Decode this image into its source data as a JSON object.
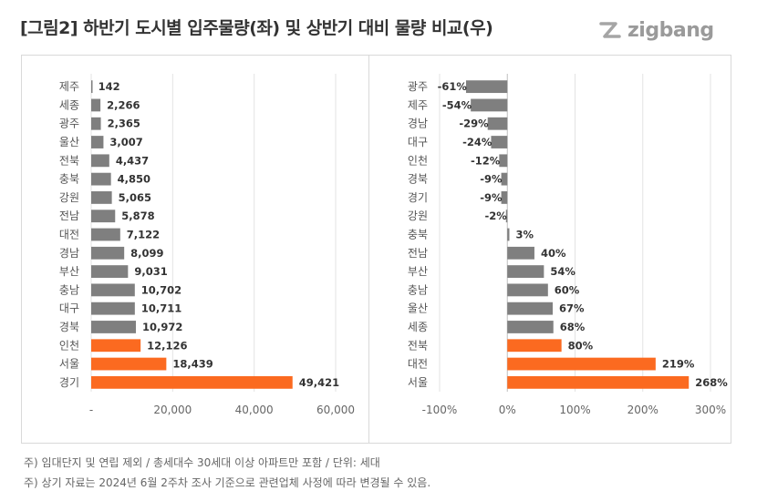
{
  "title": "[그림2] 하반기 도시별 입주물량(좌) 및 상반기 대비 물량 비교(우)",
  "logo": {
    "text": "zigbang",
    "icon": "zigbang-logo-icon"
  },
  "colors": {
    "gray": "#7f7f7f",
    "orange": "#fb6a20"
  },
  "chart_data": [
    {
      "type": "bar",
      "orientation": "horizontal",
      "categories": [
        "제주",
        "세종",
        "광주",
        "울산",
        "전북",
        "충북",
        "강원",
        "전남",
        "대전",
        "경남",
        "부산",
        "충남",
        "대구",
        "경북",
        "인천",
        "서울",
        "경기"
      ],
      "values": [
        142,
        2266,
        2365,
        3007,
        4437,
        4850,
        5065,
        5878,
        7122,
        8099,
        9031,
        10702,
        10711,
        10972,
        12126,
        18439,
        49421
      ],
      "value_labels": [
        "142",
        "2,266",
        "2,365",
        "3,007",
        "4,437",
        "4,850",
        "5,065",
        "5,878",
        "7,122",
        "8,099",
        "9,031",
        "10,702",
        "10,711",
        "10,972",
        "12,126",
        "18,439",
        "49,421"
      ],
      "highlight": [
        false,
        false,
        false,
        false,
        false,
        false,
        false,
        false,
        false,
        false,
        false,
        false,
        false,
        false,
        true,
        true,
        true
      ],
      "xlim": [
        0,
        60000
      ],
      "xticks": [
        0,
        20000,
        40000,
        60000
      ],
      "xtick_labels": [
        "-",
        "20,000",
        "40,000",
        "60,000"
      ],
      "grid": "vertical"
    },
    {
      "type": "bar",
      "orientation": "horizontal",
      "categories": [
        "광주",
        "제주",
        "경남",
        "대구",
        "인천",
        "경북",
        "경기",
        "강원",
        "충북",
        "전남",
        "부산",
        "충남",
        "울산",
        "세종",
        "전북",
        "대전",
        "서울"
      ],
      "values": [
        -61,
        -54,
        -29,
        -24,
        -12,
        -9,
        -9,
        -2,
        3,
        40,
        54,
        60,
        67,
        68,
        80,
        219,
        268
      ],
      "value_labels": [
        "-61%",
        "-54%",
        "-29%",
        "-24%",
        "-12%",
        "-9%",
        "-9%",
        "-2%",
        "3%",
        "40%",
        "54%",
        "60%",
        "67%",
        "68%",
        "80%",
        "219%",
        "268%"
      ],
      "highlight": [
        false,
        false,
        false,
        false,
        false,
        false,
        false,
        false,
        false,
        false,
        false,
        false,
        false,
        false,
        true,
        true,
        true
      ],
      "xlim": [
        -100,
        300
      ],
      "xticks": [
        -100,
        0,
        100,
        200,
        300
      ],
      "xtick_labels": [
        "-100%",
        "0%",
        "100%",
        "200%",
        "300%"
      ],
      "grid": "vertical"
    }
  ],
  "notes": [
    "주) 임대단지 및 연립 제외 / 총세대수 30세대 이상 아파트만 포함 / 단위: 세대",
    "주) 상기 자료는 2024년 6월 2주차 조사 기준으로 관련업체 사정에 따라 변경될 수 있음."
  ]
}
